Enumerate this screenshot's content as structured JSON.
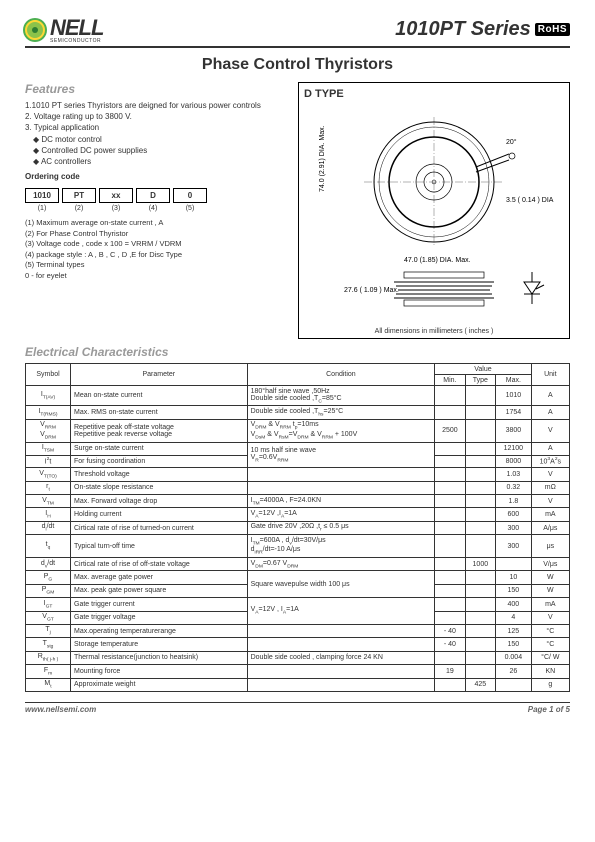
{
  "header": {
    "company": "NELL",
    "sub": "SEMICONDUCTOR",
    "series": "1010PT Series",
    "rohs": "RoHS"
  },
  "subtitle": "Phase Control Thyristors",
  "features": {
    "title": "Features",
    "items": [
      "1.1010 PT series Thyristors are deigned for various power controls",
      "2. Voltage rating up to 3800 V.",
      "3. Typical application"
    ],
    "bullets": [
      "DC motor control",
      "Controlled DC power supplies",
      "AC controllers"
    ],
    "ordering_label": "Ordering code",
    "boxes": [
      "1010",
      "PT",
      "xx",
      "D",
      "0"
    ],
    "labels": [
      "(1)",
      "(2)",
      "(3)",
      "(4)",
      "(5)"
    ],
    "notes": [
      "(1) Maximum average on-state current , A",
      "(2) For Phase Control Thyristor",
      "(3) Voltage code , code x 100 = VRRM / VDRM",
      "(4) package style : A , B , C , D ,E for Disc Type",
      "(5) Terminal types",
      "      0 - for eyelet"
    ]
  },
  "diagram": {
    "title": "D TYPE",
    "dim1": "74.0 (2.91) DIA. Max.",
    "dim2": "47.0 (1.85) DIA. Max.",
    "dim3": "3.5 ( 0.14 ) DIA.",
    "dim4": "27.6 ( 1.09 ) Max.",
    "angle": "20°",
    "note": "All dimensions in millimeters ( inches )"
  },
  "elec_title": "Electrical Characteristics",
  "elec_headers": {
    "symbol": "Symbol",
    "param": "Parameter",
    "cond": "Condition",
    "value": "Value",
    "min": "Min.",
    "typ": "Type",
    "max": "Max.",
    "unit": "Unit"
  },
  "elec": [
    {
      "sym": "I<sub>T(AV)</sub>",
      "param": "Mean on-state current",
      "cond": "180°half sine wave ,50Hz<br>Double side cooled ,T<sub>C</sub>=85°C",
      "min": "",
      "typ": "",
      "max": "1010",
      "unit": "A"
    },
    {
      "sym": "I<sub>T(RMS)</sub>",
      "param": "Max. RMS on-state current",
      "cond": "Double side cooled ,T<sub>hs</sub>=25°C",
      "min": "",
      "typ": "",
      "max": "1754",
      "unit": "A"
    },
    {
      "sym": "V<sub>RRM</sub><br>V<sub>DRM</sub>",
      "param": "Repetitive peak off-state voltage<br>Repetitive peak reverse voltage",
      "cond": "V<sub>DRM</sub> & V<sub>RRM</sub> t<sub>p</sub>=10ms<br>V<sub>DsM</sub> & V<sub>RsM</sub>=V<sub>DRM</sub> & V<sub>RRM</sub> + 100V",
      "min": "2500",
      "typ": "",
      "max": "3800",
      "unit": "V"
    },
    {
      "sym": "I<sub>TSM</sub>",
      "param": "Surge on-state current",
      "cond": "10 ms half sine wave",
      "min": "",
      "typ": "",
      "max": "12100",
      "unit": "A",
      "rowspan_cond": true
    },
    {
      "sym": "I<sup>2</sup>t",
      "param": "For fusing coordination",
      "cond": "V<sub>R</sub>=0.6V<sub>RRM</sub>",
      "min": "",
      "typ": "",
      "max": "8000",
      "unit": "10<sup>3</sup>A<sup>2</sup>s",
      "cond_merged": true
    },
    {
      "sym": "V<sub>T(TO)</sub>",
      "param": "Threshold voltage",
      "cond": "",
      "min": "",
      "typ": "",
      "max": "1.03",
      "unit": "V"
    },
    {
      "sym": "r<sub>t</sub>",
      "param": "On-state slope resistance",
      "cond": "",
      "min": "",
      "typ": "",
      "max": "0.32",
      "unit": "mΩ"
    },
    {
      "sym": "V<sub>TM</sub>",
      "param": "Max. Forward voltage drop",
      "cond": "I<sub>TM</sub>=4000A , F=24.0KN",
      "min": "",
      "typ": "",
      "max": "1.8",
      "unit": "V"
    },
    {
      "sym": "I<sub>H</sub>",
      "param": "Holding current",
      "cond": "V<sub>A</sub>=12V ,I<sub>A</sub>=1A",
      "min": "",
      "typ": "",
      "max": "600",
      "unit": "mA"
    },
    {
      "sym": "d<sub>i</sub>/dt",
      "param": "Cirtical rate of rise of turned-on current",
      "cond": "Gate drive 20V ,20Ω ,t<sub>r</sub> ≤ 0.5 μs",
      "min": "",
      "typ": "",
      "max": "300",
      "unit": "A/μs"
    },
    {
      "sym": "t<sub>q</sub>",
      "param": "Typical turn-off time",
      "cond": "I<sub>TM</sub>=600A , d<sub>v</sub>/dt=30V/μs<br>d<sub>iRR</sub>/dt=-10 A/μs",
      "min": "",
      "typ": "",
      "max": "300",
      "unit": "μs"
    },
    {
      "sym": "d<sub>v</sub>/dt",
      "param": "Cirtical rate of rise of off-state voltage",
      "cond": "V<sub>DM</sub>=0.67 V<sub>DRM</sub>",
      "min": "",
      "typ": "1000",
      "max": "",
      "unit": "V/μs"
    },
    {
      "sym": "P<sub>G</sub>",
      "param": "Max. average gate power",
      "cond": "Square wavepulse width 100 μs",
      "min": "",
      "typ": "",
      "max": "10",
      "unit": "W",
      "rowspan_cond": true
    },
    {
      "sym": "P<sub>GM</sub>",
      "param": "Max. peak gate power square",
      "cond": "",
      "min": "",
      "typ": "",
      "max": "150",
      "unit": "W",
      "cond_merged": true
    },
    {
      "sym": "I<sub>GT</sub>",
      "param": "Gate trigger current",
      "cond": "V<sub>A</sub>=12V , I<sub>A</sub>=1A",
      "min": "",
      "typ": "",
      "max": "400",
      "unit": "mA",
      "rowspan_cond": true
    },
    {
      "sym": "V<sub>GT</sub>",
      "param": "Gate trigger voltage",
      "cond": "",
      "min": "",
      "typ": "",
      "max": "4",
      "unit": "V",
      "cond_merged": true
    },
    {
      "sym": "T<sub>j</sub>",
      "param": "Max.operating temperaturerange",
      "cond": "",
      "min": "- 40",
      "typ": "",
      "max": "125",
      "unit": "°C"
    },
    {
      "sym": "T<sub>stg</sub>",
      "param": "Storage temperature",
      "cond": "",
      "min": "- 40",
      "typ": "",
      "max": "150",
      "unit": "°C"
    },
    {
      "sym": "R<sub>th( j-h )</sub>",
      "param": "Thermal resistance(junction to heatsink)",
      "cond": "Double side cooled , clamping force 24 KN",
      "min": "",
      "typ": "",
      "max": "0.004",
      "unit": "°C/ W"
    },
    {
      "sym": "F<sub>m</sub>",
      "param": "Mounting force",
      "cond": "",
      "min": "19",
      "typ": "",
      "max": "26",
      "unit": "KN"
    },
    {
      "sym": "M<sub>t</sub>",
      "param": "Approximate weight",
      "cond": "",
      "min": "",
      "typ": "425",
      "max": "",
      "unit": "g"
    }
  ],
  "footer": {
    "left": "www.nellsemi.com",
    "right": "Page 1 of 5"
  }
}
